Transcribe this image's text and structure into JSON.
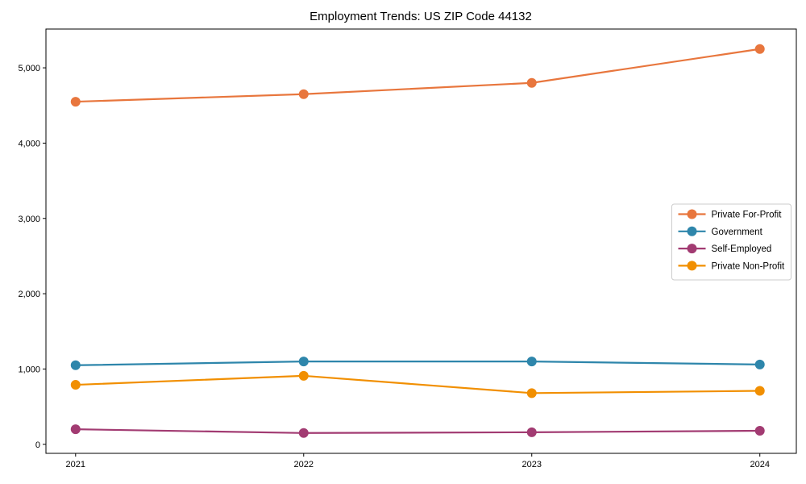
{
  "chart_data": {
    "type": "line",
    "title": "Employment Trends: US ZIP Code 44132",
    "xlabel": "",
    "ylabel": "",
    "x": [
      2021,
      2022,
      2023,
      2024
    ],
    "x_tick_labels": [
      "2021",
      "2022",
      "2023",
      "2024"
    ],
    "y_ticks": [
      0,
      1000,
      2000,
      3000,
      4000,
      5000
    ],
    "y_tick_labels": [
      "0",
      "1,000",
      "2,000",
      "3,000",
      "4,000",
      "5,000"
    ],
    "xlim": [
      2020.87,
      2024.16
    ],
    "ylim": [
      -120,
      5515
    ],
    "grid": false,
    "legend_position": "center right",
    "series": [
      {
        "name": "Private For-Profit",
        "color": "#E8763D",
        "values": [
          4550,
          4650,
          4800,
          5250
        ]
      },
      {
        "name": "Government",
        "color": "#2E86AB",
        "values": [
          1050,
          1100,
          1100,
          1060
        ]
      },
      {
        "name": "Self-Employed",
        "color": "#A23B72",
        "values": [
          200,
          150,
          160,
          180
        ]
      },
      {
        "name": "Private Non-Profit",
        "color": "#F18F01",
        "values": [
          790,
          910,
          680,
          710
        ]
      }
    ],
    "marker": "circle",
    "marker_radius": 6,
    "line_width": 2.2,
    "axis_color": "#000000",
    "legend_border_color": "#cccccc",
    "background_color": "#ffffff"
  }
}
